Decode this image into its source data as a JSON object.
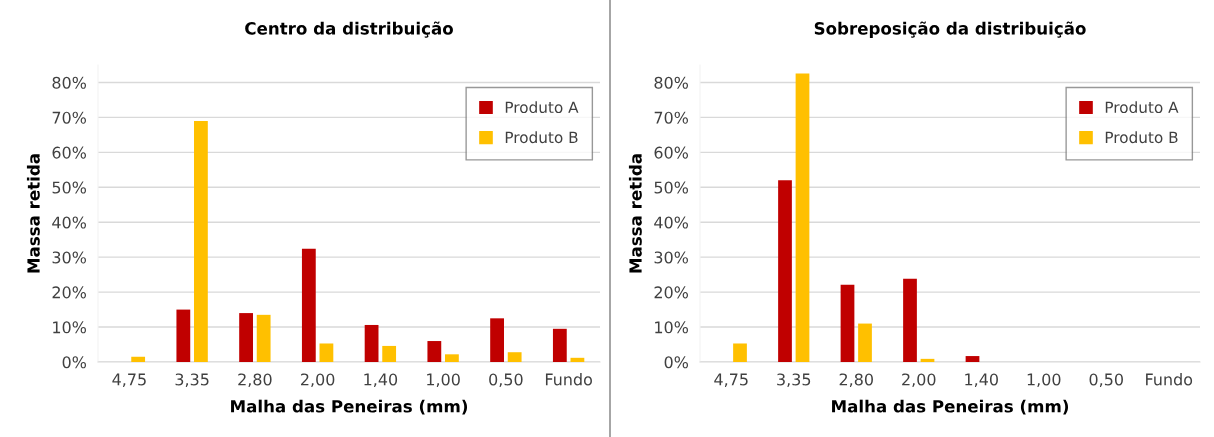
{
  "chart_data": [
    {
      "type": "bar",
      "title": "Centro da distribuição",
      "xlabel": "Malha das Peneiras (mm)",
      "ylabel": "Massa retida",
      "categories": [
        "4,75",
        "3,35",
        "2,80",
        "2,00",
        "1,40",
        "1,00",
        "0,50",
        "Fundo"
      ],
      "series": [
        {
          "name": "Produto A",
          "color": "#c00000",
          "values": [
            0,
            15.0,
            14.0,
            32.4,
            10.6,
            6.0,
            12.5,
            9.5
          ]
        },
        {
          "name": "Produto B",
          "color": "#ffc000",
          "values": [
            1.5,
            69.0,
            13.5,
            5.3,
            4.6,
            2.2,
            2.8,
            1.2
          ]
        }
      ],
      "ylim": [
        0,
        85
      ],
      "yticks": [
        {
          "value": 0,
          "label": "0%"
        },
        {
          "value": 10,
          "label": "10%"
        },
        {
          "value": 20,
          "label": "20%"
        },
        {
          "value": 30,
          "label": "30%"
        },
        {
          "value": 40,
          "label": "40%"
        },
        {
          "value": 50,
          "label": "50%"
        },
        {
          "value": 60,
          "label": "60%"
        },
        {
          "value": 70,
          "label": "70%"
        },
        {
          "value": 80,
          "label": "80%"
        }
      ],
      "grid": "y",
      "legend": "top right"
    },
    {
      "type": "bar",
      "title": "Sobreposição da distribuição",
      "xlabel": "Malha das Peneiras (mm)",
      "ylabel": "Massa retida",
      "categories": [
        "4,75",
        "3,35",
        "2,80",
        "2,00",
        "1,40",
        "1,00",
        "0,50",
        "Fundo"
      ],
      "series": [
        {
          "name": "Produto A",
          "color": "#c00000",
          "values": [
            0,
            52.0,
            22.1,
            23.8,
            1.7,
            0,
            0,
            0
          ]
        },
        {
          "name": "Produto B",
          "color": "#ffc000",
          "values": [
            5.3,
            82.6,
            11.0,
            0.9,
            0,
            0,
            0,
            0
          ]
        }
      ],
      "ylim": [
        0,
        85
      ],
      "yticks": [
        {
          "value": 0,
          "label": "0%"
        },
        {
          "value": 10,
          "label": "10%"
        },
        {
          "value": 20,
          "label": "20%"
        },
        {
          "value": 30,
          "label": "30%"
        },
        {
          "value": 40,
          "label": "40%"
        },
        {
          "value": 50,
          "label": "50%"
        },
        {
          "value": 60,
          "label": "60%"
        },
        {
          "value": 70,
          "label": "70%"
        },
        {
          "value": 80,
          "label": "80%"
        }
      ],
      "grid": "y",
      "legend": "top right"
    }
  ]
}
